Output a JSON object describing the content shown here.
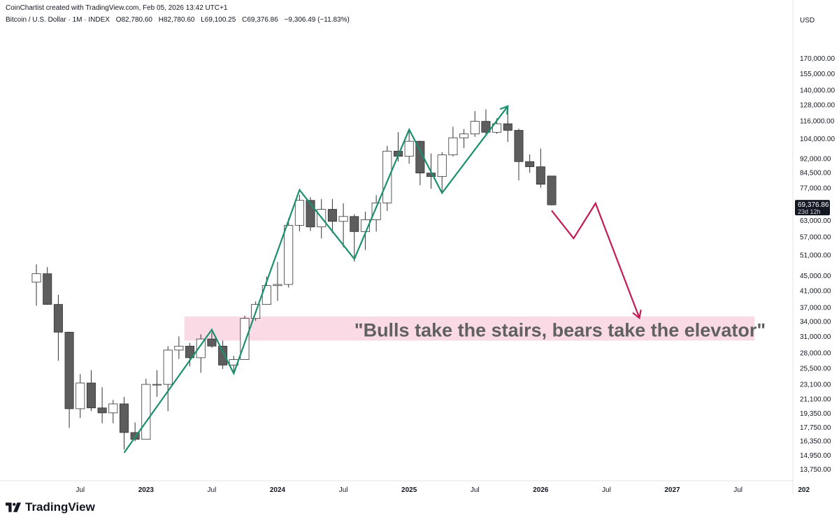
{
  "header": {
    "credit": "CoinChartist created with TradingView.com, Feb 05, 2026 13:42 UTC+1",
    "symbol": "Bitcoin / U.S. Dollar · 1M · INDEX",
    "open": "O82,780.60",
    "high": "H82,780.60",
    "low": "L69,100.25",
    "close": "C69,376.86",
    "change": "−9,306.49 (−11.83%)"
  },
  "brand": {
    "name": "TradingView",
    "icon": "tradingview-logo-icon"
  },
  "colors": {
    "bull_candle": "#ffffff",
    "bear_candle": "#5d5d5d",
    "candle_border": "#333333",
    "green_path": "#1a8f6e",
    "red_path": "#c41a55",
    "zone": "#fadbe5",
    "annotation_text": "#616161",
    "price_label_bg": "#131722"
  },
  "chart_data": {
    "type": "candlestick",
    "timeframe": "1M",
    "currency_label": "USD",
    "y_scale": "log",
    "ylim": [
      12800,
      205000
    ],
    "xlim": [
      "2021-12",
      "2027-12"
    ],
    "grid": false,
    "x_ticks": [
      {
        "date": "2022-07",
        "label": "Jul"
      },
      {
        "date": "2023-01",
        "label": "2023"
      },
      {
        "date": "2023-07",
        "label": "Jul"
      },
      {
        "date": "2024-01",
        "label": "2024"
      },
      {
        "date": "2024-07",
        "label": "Jul"
      },
      {
        "date": "2025-01",
        "label": "2025"
      },
      {
        "date": "2025-07",
        "label": "Jul"
      },
      {
        "date": "2026-01",
        "label": "2026"
      },
      {
        "date": "2026-07",
        "label": "Jul"
      },
      {
        "date": "2027-01",
        "label": "2027"
      },
      {
        "date": "2027-07",
        "label": "Jul"
      },
      {
        "date": "2028-01",
        "label": "202"
      }
    ],
    "y_ticks": [
      {
        "value": 170000,
        "label": "170,000.00"
      },
      {
        "value": 155000,
        "label": "155,000.00"
      },
      {
        "value": 140000,
        "label": "140,000.00"
      },
      {
        "value": 128000,
        "label": "128,000.00"
      },
      {
        "value": 116000,
        "label": "116,000.00"
      },
      {
        "value": 104000,
        "label": "104,000.00"
      },
      {
        "value": 92000,
        "label": "92,000.00"
      },
      {
        "value": 84500,
        "label": "84,500.00"
      },
      {
        "value": 77000,
        "label": "77,000.00"
      },
      {
        "value": 63000,
        "label": "63,000.00"
      },
      {
        "value": 57000,
        "label": "57,000.00"
      },
      {
        "value": 51000,
        "label": "51,000.00"
      },
      {
        "value": 45000,
        "label": "45,000.00"
      },
      {
        "value": 41000,
        "label": "41,000.00"
      },
      {
        "value": 37000,
        "label": "37,000.00"
      },
      {
        "value": 34000,
        "label": "34,000.00"
      },
      {
        "value": 31000,
        "label": "31,000.00"
      },
      {
        "value": 28000,
        "label": "28,000.00"
      },
      {
        "value": 25500,
        "label": "25,500.00"
      },
      {
        "value": 23100,
        "label": "23,100.00"
      },
      {
        "value": 21100,
        "label": "21,100.00"
      },
      {
        "value": 19350,
        "label": "19,350.00"
      },
      {
        "value": 17750,
        "label": "17,750.00"
      },
      {
        "value": 16350,
        "label": "16,350.00"
      },
      {
        "value": 14950,
        "label": "14,950.00"
      },
      {
        "value": 13750,
        "label": "13,750.00"
      }
    ],
    "last_price": {
      "value": 69376.86,
      "label": "69,376.86",
      "countdown": "23d 12h"
    },
    "candles": [
      {
        "date": "2022-03",
        "open": 43200,
        "high": 48200,
        "low": 37400,
        "close": 45500
      },
      {
        "date": "2022-04",
        "open": 45500,
        "high": 47400,
        "low": 37600,
        "close": 37700
      },
      {
        "date": "2022-05",
        "open": 37700,
        "high": 40000,
        "low": 26700,
        "close": 31800
      },
      {
        "date": "2022-06",
        "open": 31800,
        "high": 31900,
        "low": 17700,
        "close": 19900
      },
      {
        "date": "2022-07",
        "open": 19900,
        "high": 24600,
        "low": 18800,
        "close": 23300
      },
      {
        "date": "2022-08",
        "open": 23300,
        "high": 25200,
        "low": 19600,
        "close": 20000
      },
      {
        "date": "2022-09",
        "open": 20000,
        "high": 22700,
        "low": 18200,
        "close": 19400
      },
      {
        "date": "2022-10",
        "open": 19400,
        "high": 21000,
        "low": 18200,
        "close": 20500
      },
      {
        "date": "2022-11",
        "open": 20500,
        "high": 21400,
        "low": 15500,
        "close": 17200
      },
      {
        "date": "2022-12",
        "open": 17200,
        "high": 18300,
        "low": 16300,
        "close": 16500
      },
      {
        "date": "2023-01",
        "open": 16500,
        "high": 23900,
        "low": 16500,
        "close": 23100
      },
      {
        "date": "2023-02",
        "open": 23100,
        "high": 25200,
        "low": 21400,
        "close": 23100
      },
      {
        "date": "2023-03",
        "open": 23100,
        "high": 29200,
        "low": 19600,
        "close": 28500
      },
      {
        "date": "2023-04",
        "open": 28500,
        "high": 31000,
        "low": 27000,
        "close": 29200
      },
      {
        "date": "2023-05",
        "open": 29200,
        "high": 29800,
        "low": 25800,
        "close": 27200
      },
      {
        "date": "2023-06",
        "open": 27200,
        "high": 31400,
        "low": 24800,
        "close": 30500
      },
      {
        "date": "2023-07",
        "open": 30500,
        "high": 31800,
        "low": 28900,
        "close": 29200
      },
      {
        "date": "2023-08",
        "open": 29200,
        "high": 30200,
        "low": 25400,
        "close": 26000
      },
      {
        "date": "2023-09",
        "open": 26000,
        "high": 27500,
        "low": 24900,
        "close": 26900
      },
      {
        "date": "2023-10",
        "open": 26900,
        "high": 35200,
        "low": 26900,
        "close": 34600
      },
      {
        "date": "2023-11",
        "open": 34600,
        "high": 38400,
        "low": 34100,
        "close": 37700
      },
      {
        "date": "2023-12",
        "open": 37700,
        "high": 44700,
        "low": 37600,
        "close": 42300
      },
      {
        "date": "2024-01",
        "open": 42300,
        "high": 48900,
        "low": 38500,
        "close": 42600
      },
      {
        "date": "2024-02",
        "open": 42600,
        "high": 63900,
        "low": 41800,
        "close": 61200
      },
      {
        "date": "2024-03",
        "open": 61200,
        "high": 73800,
        "low": 59000,
        "close": 71300
      },
      {
        "date": "2024-04",
        "open": 71300,
        "high": 72700,
        "low": 59100,
        "close": 60600
      },
      {
        "date": "2024-05",
        "open": 60600,
        "high": 71900,
        "low": 56500,
        "close": 67500
      },
      {
        "date": "2024-06",
        "open": 67500,
        "high": 71900,
        "low": 58400,
        "close": 62700
      },
      {
        "date": "2024-07",
        "open": 62700,
        "high": 70000,
        "low": 53500,
        "close": 64600
      },
      {
        "date": "2024-08",
        "open": 64600,
        "high": 65500,
        "low": 49000,
        "close": 58900
      },
      {
        "date": "2024-09",
        "open": 58900,
        "high": 66500,
        "low": 52600,
        "close": 63300
      },
      {
        "date": "2024-10",
        "open": 63300,
        "high": 73600,
        "low": 58900,
        "close": 70200
      },
      {
        "date": "2024-11",
        "open": 70200,
        "high": 99600,
        "low": 66800,
        "close": 96400
      },
      {
        "date": "2024-12",
        "open": 96400,
        "high": 108300,
        "low": 90500,
        "close": 93400
      },
      {
        "date": "2025-01",
        "open": 93400,
        "high": 109600,
        "low": 89200,
        "close": 102400
      },
      {
        "date": "2025-02",
        "open": 102400,
        "high": 102800,
        "low": 78200,
        "close": 84300
      },
      {
        "date": "2025-03",
        "open": 84300,
        "high": 95000,
        "low": 76600,
        "close": 82500
      },
      {
        "date": "2025-04",
        "open": 82500,
        "high": 95800,
        "low": 74400,
        "close": 94200
      },
      {
        "date": "2025-05",
        "open": 94200,
        "high": 111900,
        "low": 93300,
        "close": 104600
      },
      {
        "date": "2025-06",
        "open": 104600,
        "high": 110400,
        "low": 98200,
        "close": 107100
      },
      {
        "date": "2025-07",
        "open": 107100,
        "high": 123200,
        "low": 105200,
        "close": 115700
      },
      {
        "date": "2025-08",
        "open": 115700,
        "high": 124500,
        "low": 107300,
        "close": 108200
      },
      {
        "date": "2025-09",
        "open": 108200,
        "high": 117900,
        "low": 107200,
        "close": 114000
      },
      {
        "date": "2025-10",
        "open": 114000,
        "high": 126100,
        "low": 102000,
        "close": 109500
      },
      {
        "date": "2025-11",
        "open": 109500,
        "high": 110600,
        "low": 80600,
        "close": 90400
      },
      {
        "date": "2025-12",
        "open": 90400,
        "high": 94500,
        "low": 84400,
        "close": 87600
      },
      {
        "date": "2026-01",
        "open": 87600,
        "high": 97900,
        "low": 77000,
        "close": 78700
      },
      {
        "date": "2026-02",
        "open": 82780.6,
        "high": 82780.6,
        "low": 69100.25,
        "close": 69376.86
      }
    ],
    "annotations": {
      "zone": {
        "from_date": "2023-05",
        "to_date": "2027-09",
        "low": 30200,
        "high": 35000
      },
      "text": "\"Bulls take the stairs, bears take the elevator\"",
      "text_date": "2024-08",
      "text_value": 32300,
      "green_path": [
        {
          "date": "2022-11",
          "value": 15200
        },
        {
          "date": "2023-07",
          "value": 32300
        },
        {
          "date": "2023-09",
          "value": 24700
        },
        {
          "date": "2024-03",
          "value": 76000
        },
        {
          "date": "2024-08",
          "value": 49800
        },
        {
          "date": "2025-01",
          "value": 110000
        },
        {
          "date": "2025-04",
          "value": 74600
        },
        {
          "date": "2025-10",
          "value": 127000
        }
      ],
      "red_path": [
        {
          "date": "2026-02",
          "value": 67000
        },
        {
          "date": "2026-04",
          "value": 56500
        },
        {
          "date": "2026-06",
          "value": 70000
        },
        {
          "date": "2026-10",
          "value": 34700
        }
      ]
    }
  }
}
